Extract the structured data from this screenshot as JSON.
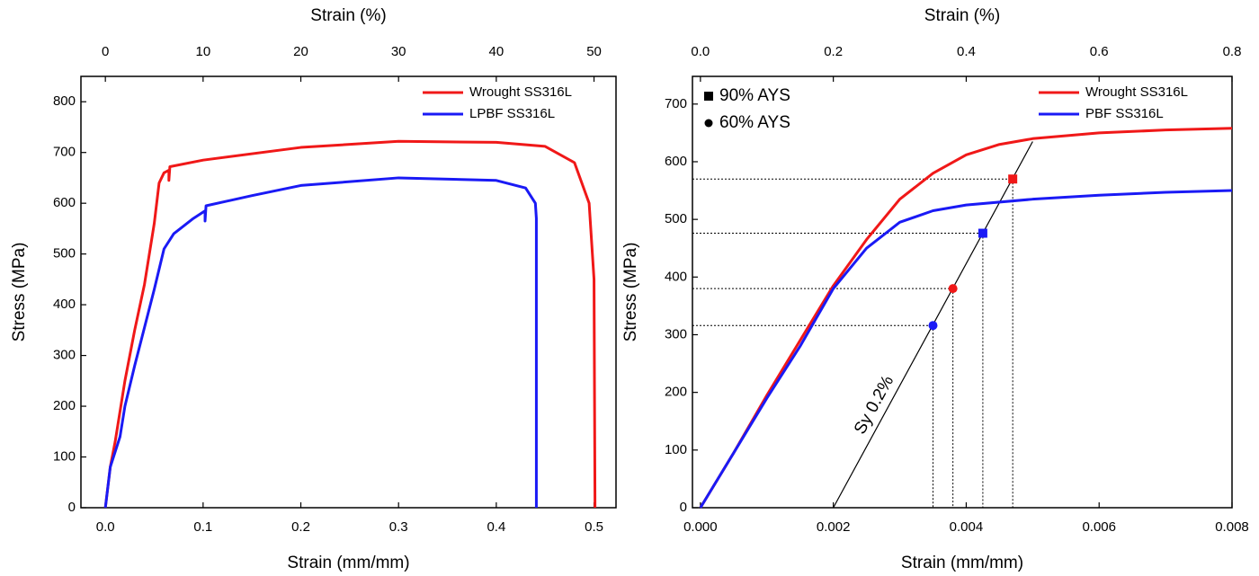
{
  "chart_data": [
    {
      "type": "line",
      "xlabel": "Strain (mm/mm)",
      "ylabel": "Stress (MPa)",
      "x2label": "Strain (%)",
      "xlim": [
        -0.025,
        0.5225
      ],
      "ylim": [
        0,
        850
      ],
      "x2lim": [
        -2.5,
        52.25
      ],
      "xticks": [
        {
          "value": 0,
          "label": "0.0"
        },
        0.1,
        0.2,
        0.3,
        0.4,
        0.5
      ],
      "yticks": [
        0,
        100,
        200,
        300,
        400,
        500,
        600,
        700,
        800
      ],
      "x2ticks": [
        0,
        10,
        20,
        30,
        40,
        50
      ],
      "legend": "upper right",
      "series": [
        {
          "name": "Wrought SS316L",
          "color": "#f01818",
          "x": [
            0,
            0.005,
            0.01,
            0.02,
            0.03,
            0.04,
            0.05,
            0.055,
            0.06,
            0.065,
            0.065,
            0.066,
            0.1,
            0.2,
            0.3,
            0.4,
            0.45,
            0.48,
            0.495,
            0.5,
            0.501
          ],
          "values": [
            0,
            80,
            130,
            250,
            350,
            440,
            560,
            640,
            660,
            665,
            645,
            672,
            685,
            710,
            722,
            720,
            712,
            680,
            600,
            450,
            0
          ]
        },
        {
          "name": "LPBF SS316L",
          "color": "#1a1af5",
          "x": [
            0,
            0.005,
            0.015,
            0.02,
            0.03,
            0.05,
            0.06,
            0.07,
            0.09,
            0.102,
            0.102,
            0.103,
            0.15,
            0.2,
            0.3,
            0.4,
            0.43,
            0.44,
            0.441,
            0.441
          ],
          "values": [
            0,
            80,
            140,
            200,
            280,
            430,
            510,
            540,
            570,
            585,
            565,
            595,
            615,
            635,
            650,
            645,
            630,
            600,
            570,
            0
          ]
        }
      ]
    },
    {
      "type": "line",
      "xlabel": "Strain (mm/mm)",
      "ylabel": "Stress (MPa)",
      "x2label": "Strain (%)",
      "xlim": [
        -0.00012,
        0.008
      ],
      "ylim": [
        0,
        748
      ],
      "x2lim": [
        -0.012,
        0.8
      ],
      "xticks": [
        {
          "value": 0,
          "label": "0.000"
        },
        {
          "value": 0.002,
          "label": "0.002"
        },
        {
          "value": 0.004,
          "label": "0.004"
        },
        {
          "value": 0.006,
          "label": "0.006"
        },
        {
          "value": 0.008,
          "label": "0.008"
        }
      ],
      "yticks": [
        0,
        100,
        200,
        300,
        400,
        500,
        600,
        700
      ],
      "x2ticks": [
        {
          "value": 0,
          "label": "0.0"
        },
        0.2,
        0.4,
        0.6,
        0.8
      ],
      "legend": "upper right",
      "series": [
        {
          "name": "Wrought SS316L",
          "color": "#f01818",
          "x": [
            0,
            0.0005,
            0.001,
            0.0015,
            0.002,
            0.0025,
            0.003,
            0.0035,
            0.004,
            0.0045,
            0.005,
            0.006,
            0.007,
            0.008
          ],
          "values": [
            0,
            95,
            195,
            290,
            385,
            465,
            535,
            580,
            612,
            630,
            640,
            650,
            655,
            658
          ]
        },
        {
          "name": "PBF SS316L",
          "color": "#1a1af5",
          "x": [
            0,
            0.0005,
            0.001,
            0.0015,
            0.002,
            0.0025,
            0.003,
            0.0035,
            0.004,
            0.005,
            0.006,
            0.007,
            0.008
          ],
          "values": [
            0,
            95,
            190,
            280,
            380,
            450,
            495,
            515,
            525,
            535,
            542,
            547,
            550
          ]
        }
      ],
      "offset_line": {
        "label": "Sy 0.2%",
        "x": [
          0.002,
          0.005
        ],
        "values": [
          0,
          635
        ]
      },
      "marker_legend": [
        {
          "label": "90% AYS",
          "marker": "square"
        },
        {
          "label": "60% AYS",
          "marker": "circle"
        }
      ],
      "markers": [
        {
          "x": 0.0047,
          "y": 570,
          "color": "#f01818",
          "marker": "square"
        },
        {
          "x": 0.00425,
          "y": 476,
          "color": "#1a1af5",
          "marker": "square"
        },
        {
          "x": 0.0038,
          "y": 380,
          "color": "#f01818",
          "marker": "circle"
        },
        {
          "x": 0.0035,
          "y": 316,
          "color": "#1a1af5",
          "marker": "circle"
        }
      ]
    }
  ]
}
